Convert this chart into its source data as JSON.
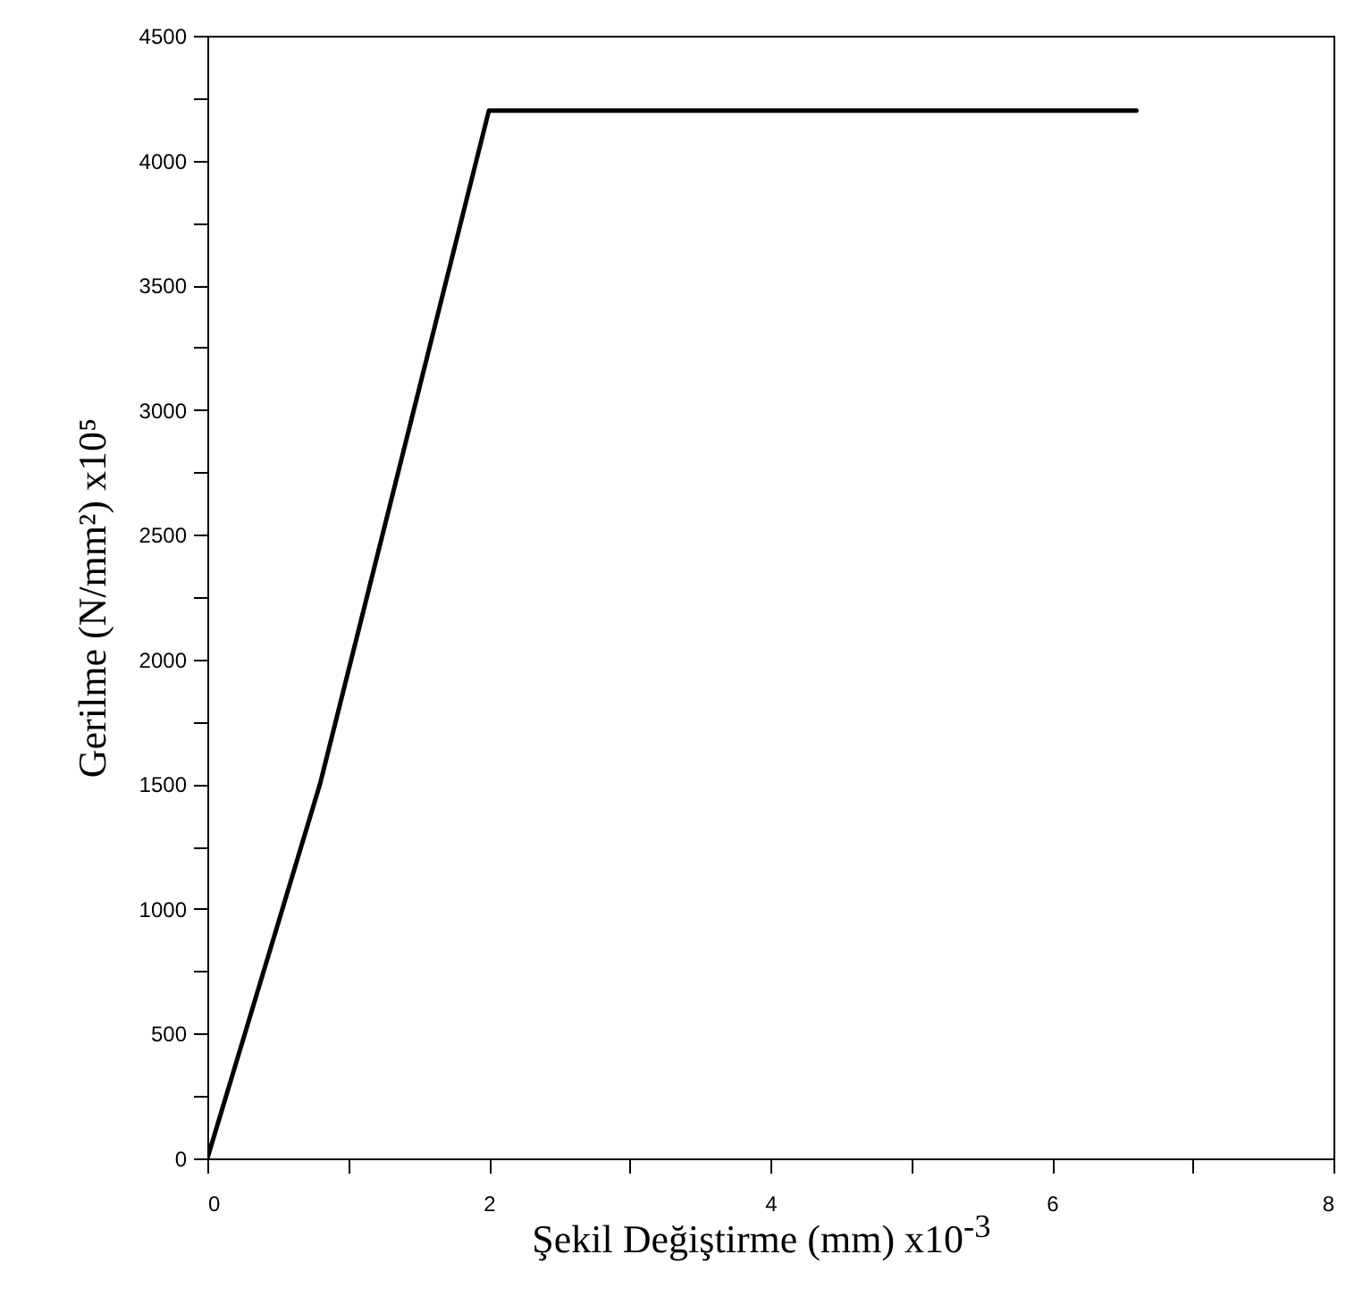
{
  "chart_data": {
    "type": "line",
    "xlabel": "Şekil Değiştirme (mm) x10$^{-3}$",
    "ylabel": "Gerilme (N/mm²) x10⁵",
    "x": [
      0,
      0.8,
      2,
      6.6
    ],
    "series": [
      {
        "color": "#000000",
        "values": [
          0,
          1500,
          4200,
          4200
        ]
      }
    ],
    "xlim": [
      0,
      8
    ],
    "ylim": [
      0,
      4500
    ],
    "xticks": [
      0,
      {
        "value": 1,
        "label": null
      },
      2,
      {
        "value": 3,
        "label": null
      },
      4,
      {
        "value": 5,
        "label": null
      },
      6,
      {
        "value": 7,
        "label": null
      },
      8
    ],
    "yticks": [
      0,
      {
        "value": 250,
        "label": null
      },
      500,
      {
        "value": 750,
        "label": null
      },
      1000,
      {
        "value": 1250,
        "label": null
      },
      1500,
      {
        "value": 1750,
        "label": null
      },
      2000,
      {
        "value": 2250,
        "label": null
      },
      2500,
      {
        "value": 2750,
        "label": null
      },
      3000,
      {
        "value": 3250,
        "label": null
      },
      3500,
      {
        "value": 3750,
        "label": null
      },
      4000,
      {
        "value": 4250,
        "label": null
      },
      4500
    ],
    "grid": false,
    "legend": false,
    "marker": "none",
    "line_style": "solid"
  }
}
